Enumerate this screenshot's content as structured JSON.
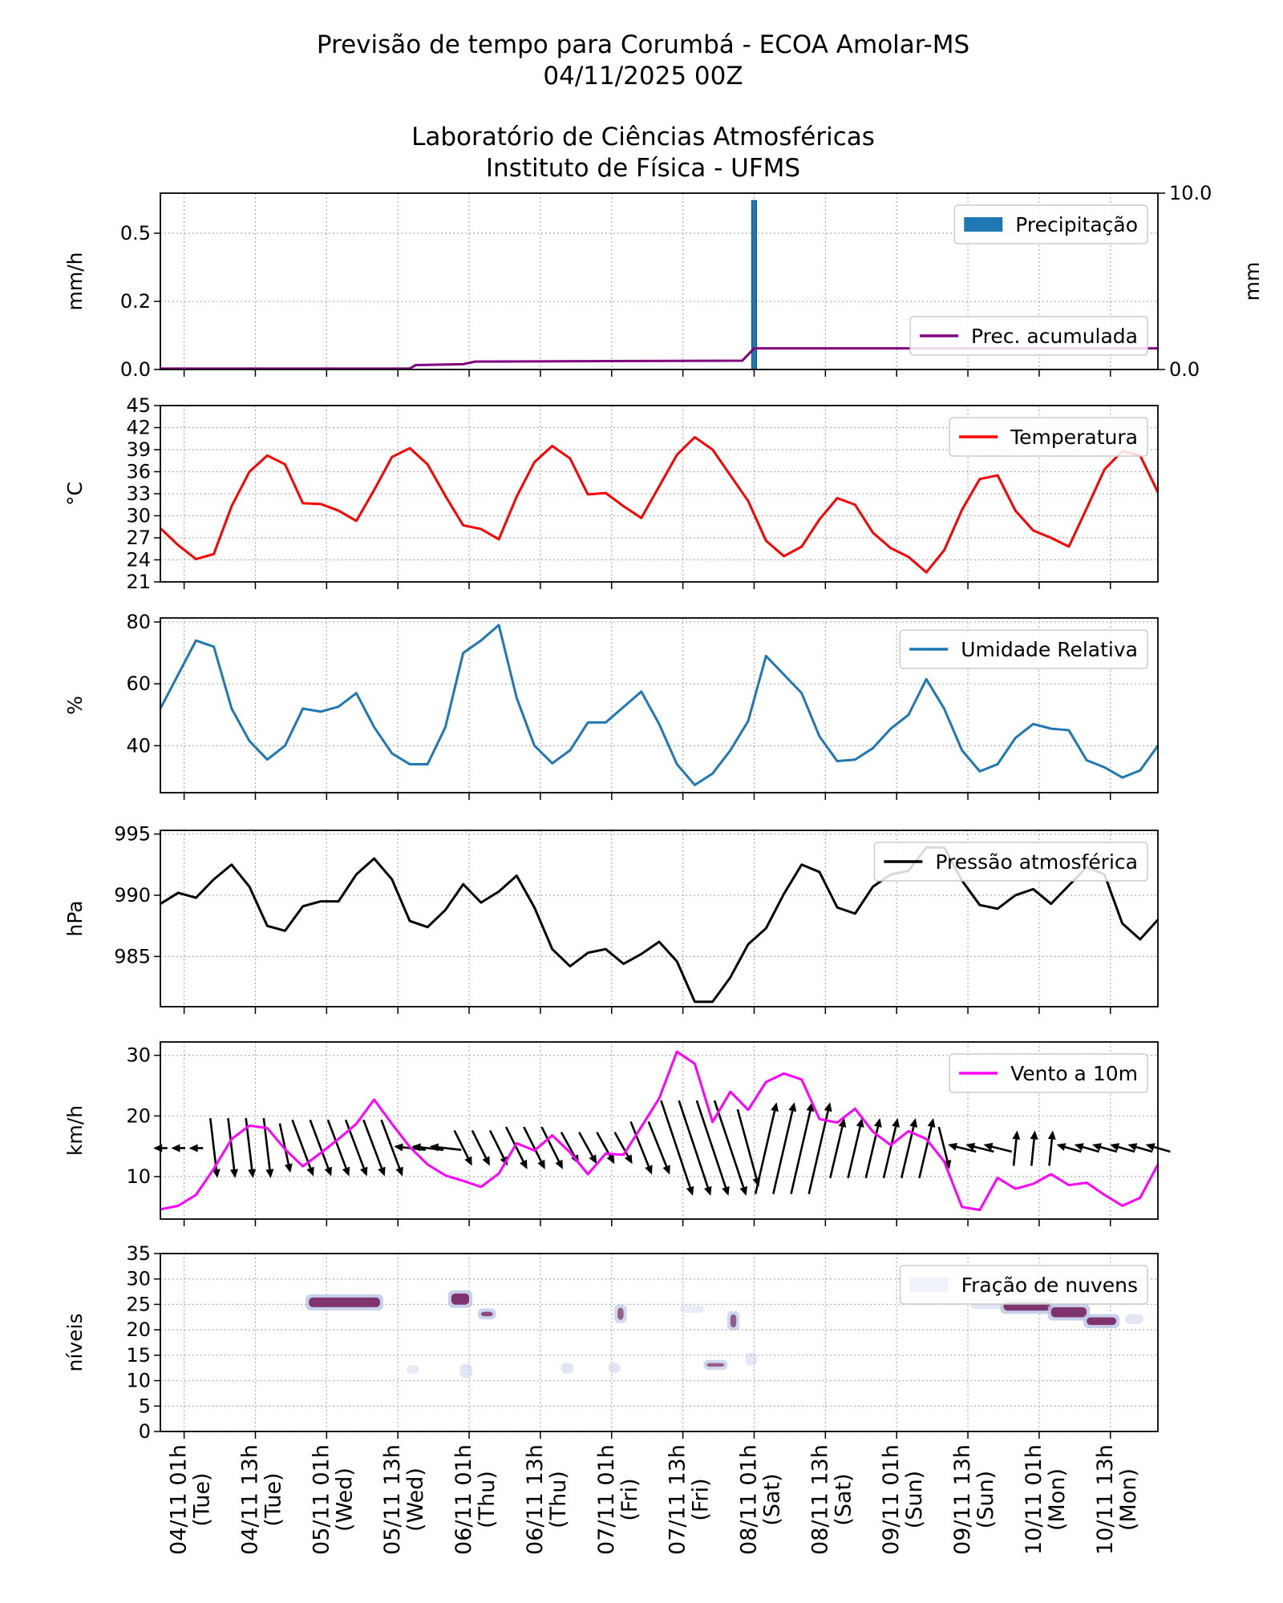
{
  "header": {
    "title_line1": "Previsão de tempo para Corumbá - ECOA Amolar-MS",
    "title_line2": "04/11/2025 00Z",
    "subtitle_line1": "Laboratório de Ciências Atmosféricas",
    "subtitle_line2": "Instituto de Física - UFMS"
  },
  "time_axis": {
    "range": [
      "03/11 21h",
      "10/11 21h"
    ],
    "ticks": [
      {
        "label": "04/11 01h",
        "day": "(Tue)"
      },
      {
        "label": "04/11 13h",
        "day": "(Tue)"
      },
      {
        "label": "05/11 01h",
        "day": "(Wed)"
      },
      {
        "label": "05/11 13h",
        "day": "(Wed)"
      },
      {
        "label": "06/11 01h",
        "day": "(Thu)"
      },
      {
        "label": "06/11 13h",
        "day": "(Thu)"
      },
      {
        "label": "07/11 01h",
        "day": "(Fri)"
      },
      {
        "label": "07/11 13h",
        "day": "(Fri)"
      },
      {
        "label": "08/11 01h",
        "day": "(Sat)"
      },
      {
        "label": "08/11 13h",
        "day": "(Sat)"
      },
      {
        "label": "09/11 01h",
        "day": "(Sun)"
      },
      {
        "label": "09/11 13h",
        "day": "(Sun)"
      },
      {
        "label": "10/11 01h",
        "day": "(Mon)"
      },
      {
        "label": "10/11 13h",
        "day": "(Mon)"
      }
    ],
    "times": [
      "03/11 21h",
      "04/11 00h",
      "04/11 03h",
      "04/11 06h",
      "04/11 09h",
      "04/11 12h",
      "04/11 15h",
      "04/11 18h",
      "04/11 21h",
      "05/11 00h",
      "05/11 03h",
      "05/11 06h",
      "05/11 09h",
      "05/11 12h",
      "05/11 15h",
      "05/11 18h",
      "05/11 21h",
      "06/11 00h",
      "06/11 03h",
      "06/11 06h",
      "06/11 09h",
      "06/11 12h",
      "06/11 15h",
      "06/11 18h",
      "06/11 21h",
      "07/11 00h",
      "07/11 03h",
      "07/11 06h",
      "07/11 09h",
      "07/11 12h",
      "07/11 15h",
      "07/11 18h",
      "07/11 21h",
      "08/11 00h",
      "08/11 03h",
      "08/11 06h",
      "08/11 09h",
      "08/11 12h",
      "08/11 15h",
      "08/11 18h",
      "08/11 21h",
      "09/11 00h",
      "09/11 03h",
      "09/11 06h",
      "09/11 09h",
      "09/11 12h",
      "09/11 15h",
      "09/11 18h",
      "09/11 21h",
      "10/11 00h",
      "10/11 03h",
      "10/11 06h",
      "10/11 09h",
      "10/11 12h",
      "10/11 15h",
      "10/11 18h",
      "10/11 21h"
    ]
  },
  "chart_data": [
    {
      "id": "precipitation",
      "type": "bar+line",
      "ylabel": "mm/h",
      "ylim": [
        0,
        0.647
      ],
      "yticks": [
        0,
        0.25,
        0.5
      ],
      "ytick_labels": [
        "0.0",
        "0.2",
        "0.5"
      ],
      "y2label": "mm",
      "y2lim": [
        0,
        10
      ],
      "y2ticks": [
        0,
        10
      ],
      "y2tick_labels": [
        "0.0",
        "10.0"
      ],
      "grid": true,
      "bars": {
        "name": "Precipitação",
        "color": "#1f77b4",
        "legend": "upper right",
        "points": [
          {
            "time": "08/11 01h",
            "value": 0.62
          }
        ]
      },
      "line": {
        "name": "Prec. acumulada",
        "color": "#800080",
        "legend": "lower right",
        "points": [
          [
            "03/11 21h",
            0.05
          ],
          [
            "05/11 15h",
            0.05
          ],
          [
            "05/11 16h",
            0.25
          ],
          [
            "06/11 00h",
            0.3
          ],
          [
            "06/11 02h",
            0.45
          ],
          [
            "07/11 23h",
            0.5
          ],
          [
            "08/11 01h",
            1.2
          ],
          [
            "10/11 21h",
            1.2
          ]
        ]
      }
    },
    {
      "id": "temperature",
      "type": "line",
      "ylabel": "°C",
      "ylim": [
        21,
        45
      ],
      "yticks": [
        21,
        24,
        27,
        30,
        33,
        36,
        39,
        42,
        45
      ],
      "ytick_labels": [
        "21",
        "24",
        "27",
        "30",
        "33",
        "36",
        "39",
        "42",
        "45"
      ],
      "grid": true,
      "series": [
        {
          "name": "Temperatura",
          "color": "#ff0000",
          "legend": "upper right",
          "values": [
            28.3,
            26,
            24.1,
            24.8,
            31.3,
            36,
            38.2,
            37,
            31.7,
            31.6,
            30.7,
            29.3,
            33.5,
            38,
            39.2,
            37,
            32.7,
            28.7,
            28.2,
            26.8,
            32.6,
            37.3,
            39.5,
            37.8,
            32.9,
            33.1,
            31.3,
            29.7,
            34,
            38.3,
            40.7,
            39,
            35.5,
            32,
            26.6,
            24.5,
            25.8,
            29.5,
            32.4,
            31.5,
            27.7,
            25.6,
            24.4,
            22.3,
            25.3,
            30.8,
            35,
            35.5,
            30.7,
            28,
            27,
            25.8,
            31,
            36.3,
            38.8,
            38.2,
            33.2
          ]
        }
      ]
    },
    {
      "id": "humidity",
      "type": "line",
      "ylabel": "%",
      "ylim": [
        24.8,
        81.3
      ],
      "yticks": [
        40,
        60,
        80
      ],
      "ytick_labels": [
        "40",
        "60",
        "80"
      ],
      "grid": true,
      "series": [
        {
          "name": "Umidade Relativa",
          "color": "#1f77b4",
          "legend": "upper right",
          "values": [
            52,
            63,
            74,
            72,
            52,
            41.5,
            35.5,
            40,
            52,
            51,
            52.6,
            57,
            46,
            37.5,
            34,
            34,
            46,
            70,
            74,
            79,
            55.5,
            40,
            34.3,
            38.5,
            47.5,
            47.5,
            52.5,
            57.5,
            47,
            34,
            27.3,
            31,
            38.5,
            48,
            69,
            63,
            57,
            43,
            35,
            35.5,
            39.2,
            45.5,
            50,
            61.5,
            52,
            38.5,
            31.7,
            34,
            42.5,
            47,
            45.5,
            45,
            35.3,
            33,
            29.7,
            32,
            40
          ]
        }
      ]
    },
    {
      "id": "pressure",
      "type": "line",
      "ylabel": "hPa",
      "ylim": [
        980.9,
        995.3
      ],
      "yticks": [
        985,
        990,
        995
      ],
      "ytick_labels": [
        "985",
        "990",
        "995"
      ],
      "grid": true,
      "series": [
        {
          "name": "Pressão atmosférica",
          "color": "#000000",
          "legend": "upper right",
          "values": [
            989.3,
            990.2,
            989.8,
            991.3,
            992.5,
            990.7,
            987.5,
            987.1,
            989.1,
            989.5,
            989.5,
            991.7,
            993,
            991.3,
            987.9,
            987.4,
            988.8,
            990.9,
            989.4,
            990.3,
            991.6,
            989,
            985.6,
            984.2,
            985.3,
            985.6,
            984.4,
            985.2,
            986.2,
            984.6,
            981.3,
            981.3,
            983.3,
            986,
            987.3,
            990.1,
            992.5,
            991.9,
            989,
            988.5,
            990.7,
            991.7,
            992,
            993.9,
            993.9,
            991.2,
            989.2,
            988.9,
            990,
            990.5,
            989.3,
            990.8,
            992.3,
            991.7,
            987.7,
            986.4,
            988
          ]
        }
      ]
    },
    {
      "id": "wind",
      "type": "line+quiver",
      "ylabel": "km/h",
      "ylim": [
        3.0,
        32.2
      ],
      "yticks": [
        10,
        20,
        30
      ],
      "ytick_labels": [
        "10",
        "20",
        "30"
      ],
      "grid": true,
      "series": [
        {
          "name": "Vento a 10m",
          "color": "#ff00ff",
          "legend": "upper right",
          "values": [
            4.6,
            5.2,
            7,
            11.3,
            16.2,
            18.4,
            18,
            14.5,
            11.7,
            13.9,
            16.2,
            18.7,
            22.7,
            18.7,
            14.9,
            12,
            10.2,
            9.3,
            8.3,
            10.5,
            15.5,
            14.3,
            16.8,
            14,
            10.4,
            13.8,
            13.6,
            18.2,
            22.9,
            30.6,
            28.6,
            19,
            24,
            21,
            25.6,
            27,
            26,
            19.5,
            18.9,
            21.2,
            17.4,
            15.2,
            17.5,
            16.2,
            12.5,
            5,
            4.5,
            9.8,
            8,
            8.8,
            10.4,
            8.6,
            9,
            7,
            5.2,
            6.5,
            12
          ]
        }
      ],
      "vectors": {
        "color": "#000000",
        "u": [
          -4,
          -4,
          -4,
          2,
          2,
          2,
          2,
          3,
          6,
          6,
          6,
          6,
          6,
          6,
          -9,
          -9,
          -9,
          5,
          5,
          5,
          6,
          6,
          6,
          5,
          5,
          5,
          5,
          6,
          6,
          9,
          9,
          9,
          9,
          6,
          6,
          6,
          6,
          6,
          4,
          4,
          4,
          4,
          4,
          4,
          3,
          -8,
          -8,
          -8,
          1,
          1,
          1,
          -7,
          -7,
          -7,
          -7,
          -7,
          -7
        ],
        "v": [
          0,
          0,
          0,
          -17,
          -17,
          -17,
          -17,
          -14,
          -16,
          -16,
          -16,
          -16,
          -16,
          -16,
          1,
          1,
          1,
          -10,
          -10,
          -10,
          -12,
          -12,
          -12,
          -9,
          -9,
          -9,
          -9,
          -15,
          -15,
          -27,
          -27,
          -27,
          -27,
          -22,
          26,
          26,
          26,
          26,
          17,
          17,
          17,
          17,
          17,
          17,
          -12,
          2,
          2,
          2,
          10,
          10,
          10,
          2,
          2,
          2,
          2,
          2,
          2
        ]
      }
    },
    {
      "id": "clouds",
      "type": "heatmap",
      "ylabel": "níveis",
      "ylim": [
        0,
        35
      ],
      "yticks": [
        0,
        5,
        10,
        15,
        20,
        25,
        30,
        35
      ],
      "ytick_labels": [
        "0",
        "5",
        "10",
        "15",
        "20",
        "25",
        "30",
        "35"
      ],
      "grid": true,
      "legend": {
        "name": "Fração de nuvens",
        "placement": "upper right"
      },
      "colors": {
        "low": "#dfe8f5",
        "high": "#75205f",
        "halo": "#b7c6e6"
      },
      "patches": [
        {
          "start": "04/11 22h",
          "end": "05/11 10h",
          "level_min": 24.3,
          "level_max": 26.5,
          "fraction": 0.9
        },
        {
          "start": "05/11 22h",
          "end": "06/11 01h",
          "level_min": 24.8,
          "level_max": 27.3,
          "fraction": 0.9
        },
        {
          "start": "06/11 03h",
          "end": "06/11 05h",
          "level_min": 22.5,
          "level_max": 23.7,
          "fraction": 0.8
        },
        {
          "start": "07/11 02h",
          "end": "07/11 03h",
          "level_min": 21.8,
          "level_max": 24.5,
          "fraction": 0.7
        },
        {
          "start": "07/11 17h",
          "end": "07/11 20h",
          "level_min": 12.6,
          "level_max": 13.6,
          "fraction": 0.7
        },
        {
          "start": "07/11 21h",
          "end": "07/11 22h",
          "level_min": 20.3,
          "level_max": 23.2,
          "fraction": 0.7
        },
        {
          "start": "09/11 14h",
          "end": "09/11 19h",
          "level_min": 24.6,
          "level_max": 26.2,
          "fraction": 0.3
        },
        {
          "start": "09/11 19h",
          "end": "10/11 03h",
          "level_min": 23.6,
          "level_max": 25.6,
          "fraction": 0.9
        },
        {
          "start": "10/11 03h",
          "end": "10/11 09h",
          "level_min": 22.3,
          "level_max": 24.6,
          "fraction": 0.9
        },
        {
          "start": "10/11 09h",
          "end": "10/11 14h",
          "level_min": 20.8,
          "level_max": 22.6,
          "fraction": 0.9
        },
        {
          "start": "10/11 16h",
          "end": "10/11 18h",
          "level_min": 21.6,
          "level_max": 22.6,
          "fraction": 0.3
        },
        {
          "start": "05/11 15h",
          "end": "05/11 16h",
          "level_min": 11.8,
          "level_max": 12.6,
          "fraction": 0.15
        },
        {
          "start": "06/11 00h",
          "end": "06/11 01h",
          "level_min": 11.0,
          "level_max": 12.8,
          "fraction": 0.3
        },
        {
          "start": "06/11 17h",
          "end": "06/11 18h",
          "level_min": 11.8,
          "level_max": 13.0,
          "fraction": 0.3
        },
        {
          "start": "07/11 01h",
          "end": "07/11 02h",
          "level_min": 12.0,
          "level_max": 13.0,
          "fraction": 0.3
        },
        {
          "start": "07/11 13h",
          "end": "07/11 16h",
          "level_min": 23.8,
          "level_max": 24.4,
          "fraction": 0.1
        },
        {
          "start": "08/11 00h",
          "end": "08/11 01h",
          "level_min": 13.5,
          "level_max": 15.0,
          "fraction": 0.25
        }
      ]
    }
  ]
}
